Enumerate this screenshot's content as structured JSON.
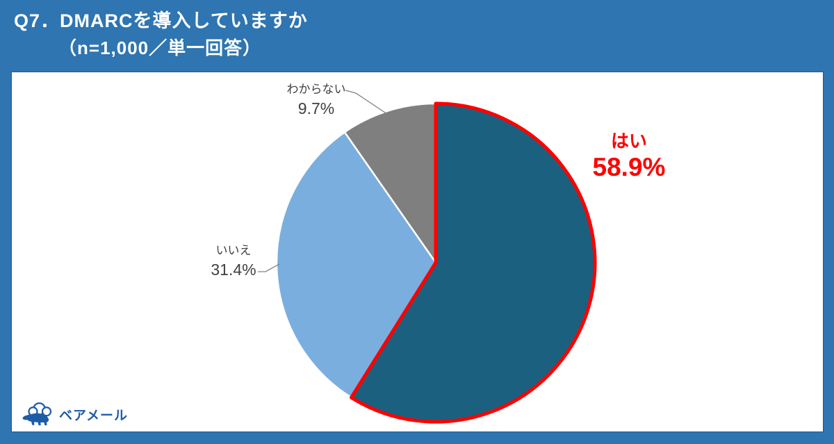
{
  "header": {
    "title_line1": "Q7．DMARCを導入していますか",
    "title_line2": "（n=1,000／単一回答）"
  },
  "chart_data": {
    "type": "pie",
    "title": "Q7. DMARCを導入していますか",
    "sample_note": "n=1,000／単一回答",
    "unit": "%",
    "start_angle_deg": 0,
    "direction": "clockwise",
    "highlight_stroke": "#FF0000",
    "slice_gap_stroke": "#FFFFFF",
    "slices": [
      {
        "key": "yes",
        "label": "はい",
        "value": 58.9,
        "display": "58.9%",
        "color": "#1B607F",
        "highlighted": true
      },
      {
        "key": "no",
        "label": "いいえ",
        "value": 31.4,
        "display": "31.4%",
        "color": "#7AAEDF",
        "highlighted": false
      },
      {
        "key": "unknown",
        "label": "わからない",
        "value": 9.7,
        "display": "9.7%",
        "color": "#7F7F7F",
        "highlighted": false
      }
    ]
  },
  "logo": {
    "text": "ベアメール",
    "color": "#1E5CA8",
    "icon": "bear-cloud-icon"
  },
  "colors": {
    "background": "#2E75B1",
    "panel": "#FFFFFF",
    "accent_red": "#FF0000",
    "label_text": "#404040",
    "leader_line": "#808080"
  }
}
